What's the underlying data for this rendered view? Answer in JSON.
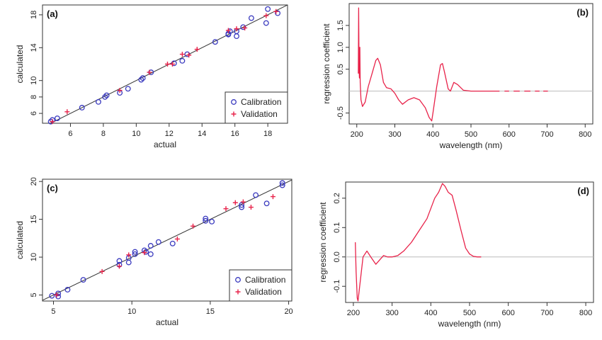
{
  "colors": {
    "calibration": "#3b3bbf",
    "validation": "#e8234a",
    "coef_line": "#e8234a",
    "fit_line": "#333333",
    "zero_line": "#bbbbbb",
    "frame": "#333333"
  },
  "chart_data": [
    {
      "type": "scatter",
      "panel_label": "(a)",
      "xlabel": "actual",
      "ylabel": "calculated",
      "xlim": [
        4.3,
        19.2
      ],
      "ylim": [
        4.8,
        19.2
      ],
      "xticks": [
        6,
        8,
        10,
        12,
        14,
        16,
        18
      ],
      "yticks": [
        6,
        8,
        10,
        14,
        18
      ],
      "fit_line": [
        [
          4.3,
          4.3
        ],
        [
          19.2,
          19.2
        ]
      ],
      "legend": {
        "position": "bottom-right",
        "entries": [
          "Calibration",
          "Validation"
        ]
      },
      "series": [
        {
          "name": "Calibration",
          "marker": "circle",
          "x": [
            4.8,
            4.9,
            5.2,
            6.7,
            7.7,
            8.1,
            8.2,
            9.0,
            9.5,
            10.3,
            10.4,
            10.9,
            12.3,
            12.8,
            13.1,
            14.8,
            15.6,
            15.6,
            15.7,
            16.1,
            16.1,
            16.5,
            17.0,
            17.9,
            18.0,
            18.6
          ],
          "y": [
            5.0,
            5.2,
            5.4,
            6.7,
            7.4,
            8.0,
            8.2,
            8.5,
            9.0,
            10.1,
            10.3,
            11.0,
            12.1,
            12.4,
            13.2,
            14.7,
            15.6,
            15.7,
            16.0,
            15.4,
            16.0,
            16.5,
            17.6,
            17.0,
            18.7,
            18.2
          ]
        },
        {
          "name": "Validation",
          "marker": "plus",
          "x": [
            4.9,
            5.8,
            9.0,
            10.8,
            11.9,
            12.2,
            12.8,
            13.2,
            13.7,
            15.6,
            16.1,
            16.6,
            17.9,
            18.5
          ],
          "y": [
            5.0,
            6.2,
            8.8,
            11.0,
            12.0,
            12.0,
            13.2,
            13.1,
            13.8,
            16.1,
            16.3,
            16.4,
            17.9,
            18.4
          ]
        }
      ]
    },
    {
      "type": "line",
      "panel_label": "(b)",
      "xlabel": "wavelength (nm)",
      "ylabel": "regression coefficient",
      "xlim": [
        180,
        820
      ],
      "ylim": [
        -0.75,
        2.0
      ],
      "xticks": [
        200,
        300,
        400,
        500,
        600,
        700,
        800
      ],
      "yticks": [
        -0.5,
        0.5,
        1.0,
        1.5
      ],
      "ytick_labels": [
        "-0.5",
        "0.5",
        "1.0",
        "1.5"
      ],
      "zero_line": 0,
      "series": [
        {
          "segments": [
            [
              [
                204,
                0.4
              ],
              [
                205,
                1.9
              ],
              [
                206,
                0.5
              ],
              [
                207,
                0.3
              ],
              [
                208,
                1.0
              ],
              [
                209,
                0.2
              ],
              [
                211,
                -0.2
              ],
              [
                215,
                -0.35
              ],
              [
                222,
                -0.25
              ],
              [
                230,
                0.1
              ],
              [
                240,
                0.4
              ],
              [
                250,
                0.7
              ],
              [
                255,
                0.75
              ],
              [
                262,
                0.6
              ],
              [
                270,
                0.2
              ],
              [
                278,
                0.08
              ],
              [
                290,
                0.05
              ],
              [
                300,
                -0.05
              ],
              [
                310,
                -0.2
              ],
              [
                320,
                -0.3
              ],
              [
                335,
                -0.2
              ],
              [
                350,
                -0.15
              ],
              [
                365,
                -0.2
              ],
              [
                380,
                -0.38
              ],
              [
                390,
                -0.6
              ],
              [
                397,
                -0.68
              ],
              [
                400,
                -0.5
              ],
              [
                410,
                0.1
              ],
              [
                420,
                0.6
              ],
              [
                425,
                0.63
              ],
              [
                430,
                0.45
              ],
              [
                440,
                0.05
              ],
              [
                446,
                0.0
              ],
              [
                455,
                0.2
              ],
              [
                465,
                0.15
              ],
              [
                480,
                0.02
              ],
              [
                500,
                0.0
              ],
              [
                520,
                0.0
              ],
              [
                560,
                0.0
              ],
              [
                575,
                0.0
              ]
            ],
            [
              [
                588,
                0.0
              ],
              [
                600,
                0.0
              ]
            ],
            [
              [
                612,
                0.0
              ],
              [
                628,
                0.0
              ]
            ],
            [
              [
                640,
                0.0
              ],
              [
                656,
                0.0
              ]
            ],
            [
              [
                668,
                0.0
              ],
              [
                680,
                0.0
              ]
            ],
            [
              [
                690,
                0.0
              ],
              [
                702,
                0.0
              ]
            ]
          ]
        }
      ]
    },
    {
      "type": "scatter",
      "panel_label": "(c)",
      "xlabel": "actual",
      "ylabel": "calculated",
      "xlim": [
        4.3,
        20.2
      ],
      "ylim": [
        4.2,
        20.3
      ],
      "xticks": [
        5,
        10,
        15,
        20
      ],
      "yticks": [
        5,
        10,
        15,
        20
      ],
      "fit_line": [
        [
          4.3,
          4.3
        ],
        [
          20.2,
          20.2
        ]
      ],
      "legend": {
        "position": "bottom-right",
        "entries": [
          "Calibration",
          "Validation"
        ]
      },
      "series": [
        {
          "name": "Calibration",
          "marker": "circle",
          "x": [
            4.9,
            5.3,
            5.3,
            5.9,
            6.9,
            9.2,
            9.2,
            9.8,
            9.8,
            10.2,
            10.2,
            10.8,
            10.9,
            11.2,
            11.2,
            11.7,
            12.6,
            14.7,
            14.7,
            15.1,
            17.0,
            17.0,
            17.9,
            18.6,
            19.6,
            19.6
          ],
          "y": [
            4.9,
            4.8,
            5.2,
            5.7,
            7.0,
            9.0,
            9.5,
            9.3,
            9.9,
            10.4,
            10.7,
            10.9,
            10.7,
            10.4,
            11.5,
            12.0,
            11.8,
            14.8,
            15.1,
            14.7,
            16.6,
            16.9,
            18.2,
            17.1,
            19.5,
            19.8
          ]
        },
        {
          "name": "Validation",
          "marker": "plus",
          "x": [
            5.2,
            8.1,
            9.2,
            9.8,
            10.8,
            12.9,
            13.9,
            16.0,
            16.6,
            17.1,
            17.6,
            19.0
          ],
          "y": [
            5.0,
            8.1,
            8.8,
            10.3,
            10.6,
            12.4,
            14.1,
            16.4,
            17.2,
            17.3,
            16.6,
            18.0
          ]
        }
      ]
    },
    {
      "type": "line",
      "panel_label": "(d)",
      "xlabel": "wavelength (nm)",
      "ylabel": "regression coefficient",
      "xlim": [
        180,
        820
      ],
      "ylim": [
        -0.155,
        0.255
      ],
      "xticks": [
        200,
        300,
        400,
        500,
        600,
        700,
        800
      ],
      "yticks": [
        -0.1,
        0.0,
        0.1,
        0.2
      ],
      "ytick_labels": [
        "-0.1",
        "0.0",
        "0.1",
        "0.2"
      ],
      "zero_line": 0,
      "series": [
        {
          "segments": [
            [
              [
                205,
                0.05
              ],
              [
                207,
                -0.05
              ],
              [
                210,
                -0.14
              ],
              [
                212,
                -0.15
              ],
              [
                218,
                -0.08
              ],
              [
                225,
                0.0
              ],
              [
                235,
                0.02
              ],
              [
                245,
                0.0
              ],
              [
                258,
                -0.025
              ],
              [
                268,
                -0.01
              ],
              [
                278,
                0.005
              ],
              [
                288,
                0.0
              ],
              [
                300,
                0.0
              ],
              [
                315,
                0.005
              ],
              [
                330,
                0.02
              ],
              [
                350,
                0.05
              ],
              [
                370,
                0.09
              ],
              [
                390,
                0.13
              ],
              [
                410,
                0.2
              ],
              [
                420,
                0.22
              ],
              [
                430,
                0.25
              ],
              [
                437,
                0.24
              ],
              [
                445,
                0.22
              ],
              [
                455,
                0.21
              ],
              [
                465,
                0.16
              ],
              [
                478,
                0.09
              ],
              [
                490,
                0.03
              ],
              [
                500,
                0.01
              ],
              [
                510,
                0.002
              ],
              [
                520,
                0.0
              ],
              [
                530,
                0.0
              ]
            ]
          ]
        }
      ]
    }
  ]
}
